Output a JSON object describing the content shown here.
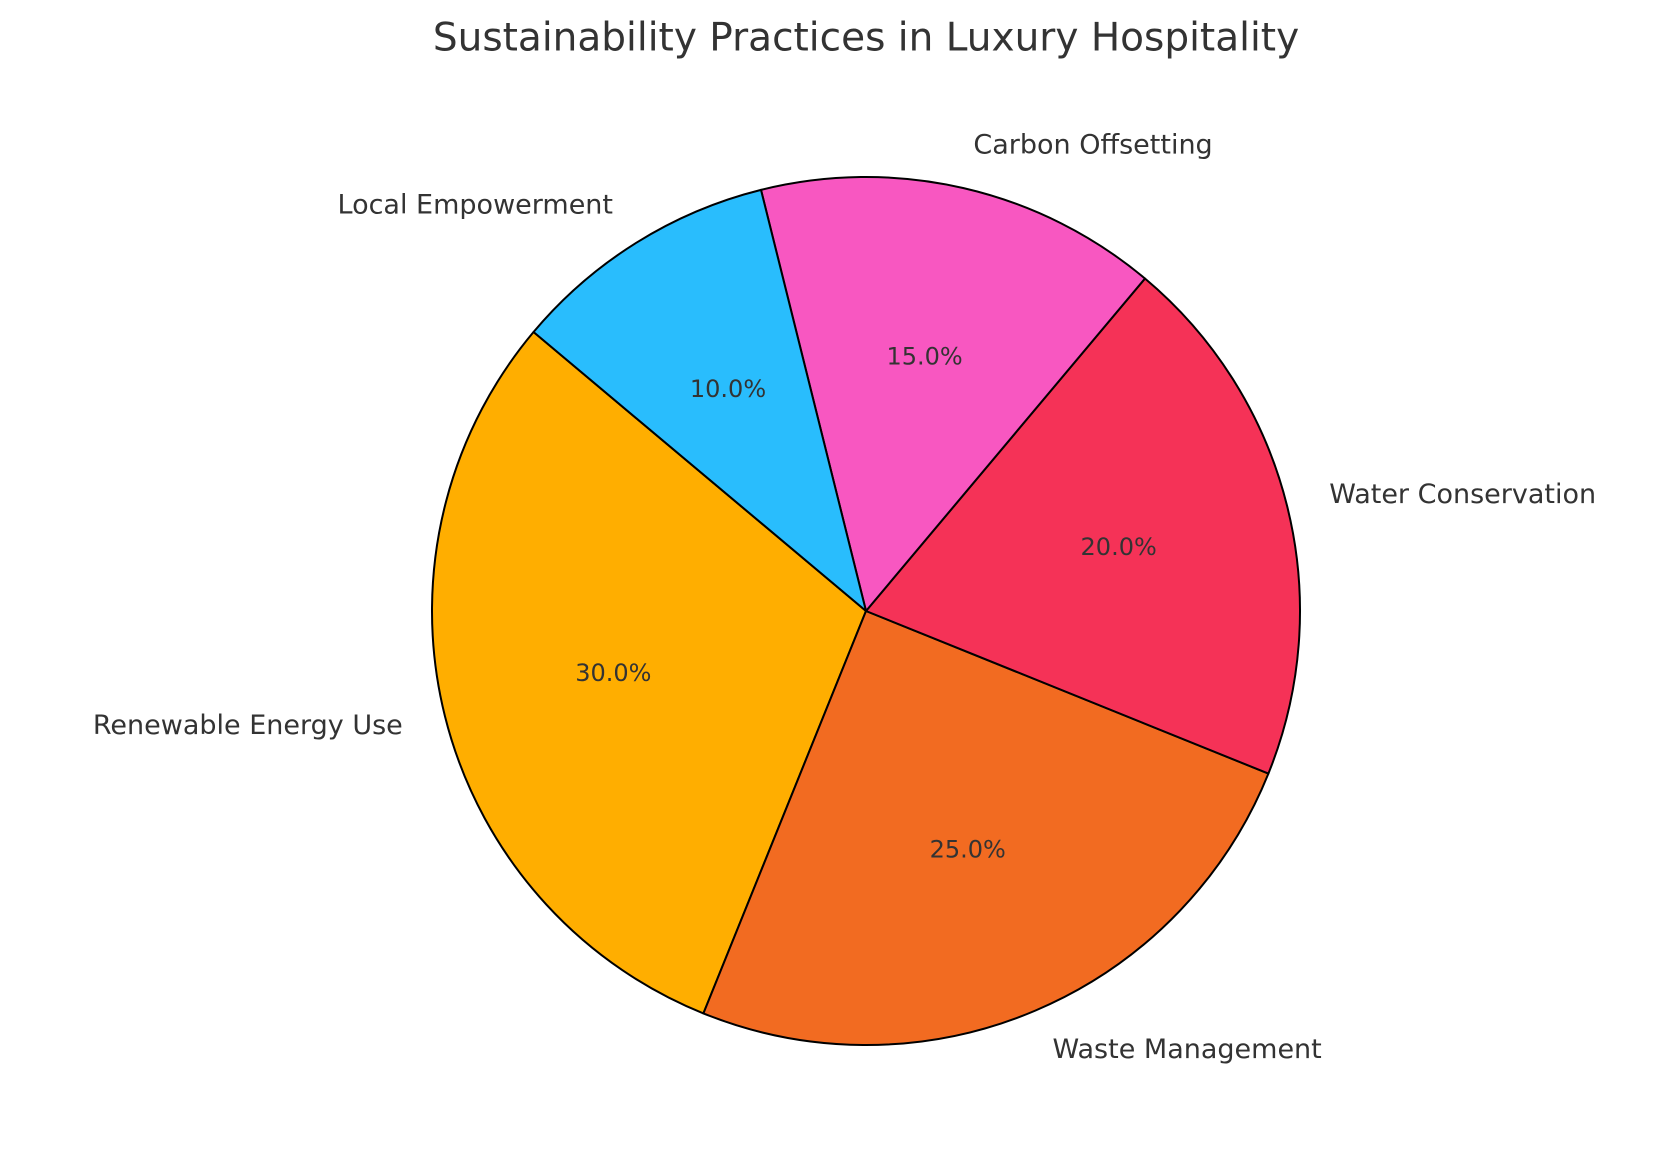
{
  "chart_data": {
    "type": "pie",
    "title": "Sustainability Practices in Luxury Hospitality",
    "categories": [
      "Renewable Energy Use",
      "Waste Management",
      "Water Conservation",
      "Carbon Offsetting",
      "Local Empowerment"
    ],
    "values": [
      30,
      25,
      20,
      15,
      10
    ],
    "value_labels": [
      "30.0%",
      "25.0%",
      "20.0%",
      "15.0%",
      "10.0%"
    ],
    "colors": [
      "#ffae00",
      "#f26b21",
      "#f53257",
      "#f857c1",
      "#29bdfd"
    ]
  }
}
